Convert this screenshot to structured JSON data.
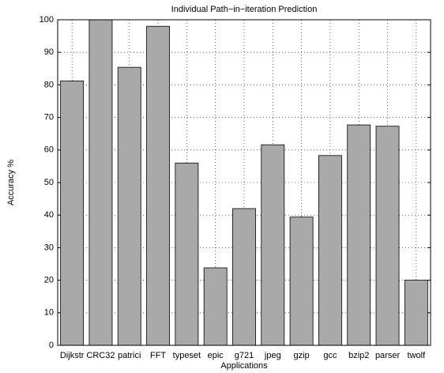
{
  "chart_data": {
    "type": "bar",
    "title": "Individual Path−in−iteration Prediction",
    "x_label": "Applications",
    "y_label": "Accuracy %",
    "categories": [
      "Dijkstr",
      "CRC32",
      "patrici",
      "FFT",
      "typeset",
      "epic",
      "g721",
      "jpeg",
      "gzip",
      "gcc",
      "bzip2",
      "parser",
      "twolf"
    ],
    "values": [
      81.2,
      100,
      85.4,
      98,
      56,
      23.8,
      42,
      61.6,
      39.4,
      58.3,
      67.7,
      67.3,
      20
    ],
    "color": "#a9a9a9",
    "ylim": [
      0,
      100
    ],
    "yticks": [
      0,
      10,
      20,
      30,
      40,
      50,
      60,
      70,
      80,
      90,
      100
    ],
    "grid": true
  }
}
